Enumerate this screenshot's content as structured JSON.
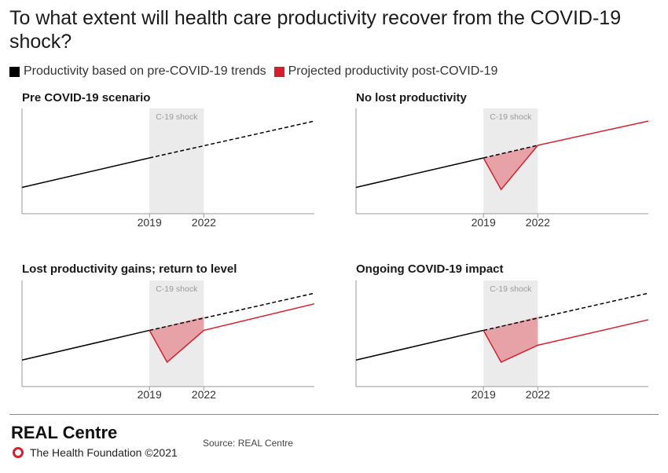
{
  "title": "To what extent will health care productivity recover from the COVID-19 shock?",
  "legend": [
    {
      "label": "Productivity based on pre-COVID-19 trends",
      "color": "#000000"
    },
    {
      "label": "Projected productivity post-COVID-19",
      "color": "#d5202b"
    }
  ],
  "colors": {
    "trend": "#000000",
    "projected": "#d5202b",
    "shaded_area": "#e7a2a8",
    "shock_band": "#ebebeb"
  },
  "chart_data": [
    {
      "type": "line",
      "title": "Pre COVID-19 scenario",
      "shock_label": "C-19 shock",
      "x_ticks": [
        "2019",
        "2022"
      ],
      "series": [
        {
          "name": "Productivity based on pre-COVID-19 trends",
          "style": "solid",
          "x": [
            0,
            1
          ],
          "y": [
            0.25,
            0.53
          ]
        },
        {
          "name": "Productivity based on pre-COVID-19 trends",
          "style": "dashed",
          "x": [
            1,
            2
          ],
          "y": [
            0.53,
            0.88
          ]
        }
      ]
    },
    {
      "type": "line",
      "title": "No lost productivity",
      "shock_label": "C-19 shock",
      "x_ticks": [
        "2019",
        "2022"
      ],
      "series": [
        {
          "name": "Productivity based on pre-COVID-19 trends",
          "style": "solid",
          "x": [
            0,
            1
          ],
          "y": [
            0.25,
            0.53
          ]
        },
        {
          "name": "Productivity based on pre-COVID-19 trends",
          "style": "dashed",
          "x": [
            1,
            1.37
          ],
          "y": [
            0.53,
            0.65
          ]
        },
        {
          "name": "Projected productivity post-COVID-19",
          "style": "solid",
          "x": [
            1,
            1.12,
            1.37,
            2
          ],
          "y": [
            0.53,
            0.23,
            0.65,
            0.88
          ]
        }
      ]
    },
    {
      "type": "line",
      "title": "Lost productivity gains; return to level",
      "shock_label": "C-19 shock",
      "x_ticks": [
        "2019",
        "2022"
      ],
      "series": [
        {
          "name": "Productivity based on pre-COVID-19 trends",
          "style": "solid",
          "x": [
            0,
            1
          ],
          "y": [
            0.25,
            0.53
          ]
        },
        {
          "name": "Productivity based on pre-COVID-19 trends",
          "style": "dashed",
          "x": [
            1,
            2
          ],
          "y": [
            0.53,
            0.88
          ]
        },
        {
          "name": "Projected productivity post-COVID-19",
          "style": "solid",
          "x": [
            1,
            1.12,
            1.37,
            2
          ],
          "y": [
            0.53,
            0.23,
            0.53,
            0.78
          ]
        }
      ]
    },
    {
      "type": "line",
      "title": "Ongoing COVID-19 impact",
      "shock_label": "C-19 shock",
      "x_ticks": [
        "2019",
        "2022"
      ],
      "series": [
        {
          "name": "Productivity based on pre-COVID-19 trends",
          "style": "solid",
          "x": [
            0,
            1
          ],
          "y": [
            0.25,
            0.53
          ]
        },
        {
          "name": "Productivity based on pre-COVID-19 trends",
          "style": "dashed",
          "x": [
            1,
            2
          ],
          "y": [
            0.53,
            0.88
          ]
        },
        {
          "name": "Projected productivity post-COVID-19",
          "style": "solid",
          "x": [
            1,
            1.12,
            1.37,
            2
          ],
          "y": [
            0.53,
            0.23,
            0.39,
            0.63
          ]
        }
      ]
    }
  ],
  "footer": {
    "brand": "REAL Centre",
    "org": "The Health Foundation ©2021",
    "source": "Source: REAL Centre"
  }
}
